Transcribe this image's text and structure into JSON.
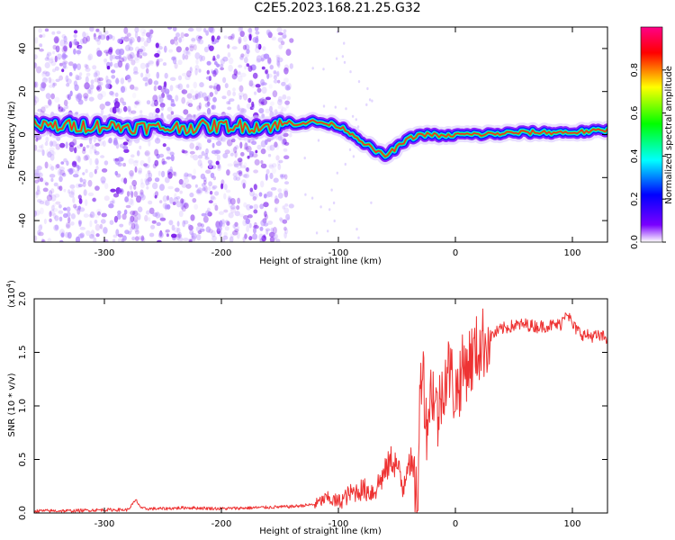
{
  "page": {
    "title": "C2E5.2023.168.21.25.G32"
  },
  "chart_data": [
    {
      "type": "heatmap",
      "xlabel": "Height of straight line (km)",
      "ylabel": "Frequency (Hz)",
      "xlim": [
        -360,
        130
      ],
      "ylim": [
        -50,
        50
      ],
      "xticks": [
        -300,
        -200,
        -100,
        0,
        100
      ],
      "yticks": [
        -40,
        -20,
        0,
        20,
        40
      ],
      "colorbar": {
        "label": "Normalized spectral amplitude",
        "range": [
          0.0,
          1.0
        ],
        "ticks": [
          0.0,
          0.2,
          0.4,
          0.6,
          0.8
        ],
        "tick_labels": [
          "0.0",
          "0.2",
          "0.4",
          "0.6",
          "0.8"
        ],
        "colormap": "rainbow (violet → blue → cyan → green → yellow → red → magenta)"
      },
      "ridge": {
        "x": [
          -360,
          -300,
          -250,
          -200,
          -160,
          -140,
          -120,
          -100,
          -90,
          -80,
          -70,
          -60,
          -50,
          -40,
          -30,
          -20,
          -10,
          0,
          20,
          60,
          100,
          130
        ],
        "y": [
          4,
          4,
          3,
          4,
          4,
          5,
          6,
          4,
          1,
          -3,
          -7,
          -10,
          -6,
          -2,
          0,
          0,
          -1,
          0,
          0,
          1,
          1,
          2
        ]
      },
      "noise_extent_x": [
        -360,
        -140
      ]
    },
    {
      "type": "line",
      "xlabel": "Height of straight line (km)",
      "ylabel": "SNR (10 * v/v)",
      "y_multiplier_label": "(x10",
      "y_multiplier_exp": "4",
      "y_multiplier_close": ")",
      "xlim": [
        -360,
        130
      ],
      "ylim": [
        0,
        2.0
      ],
      "xticks": [
        -300,
        -200,
        -100,
        0,
        100
      ],
      "yticks": [
        0.0,
        0.5,
        1.0,
        1.5,
        2.0
      ],
      "ytick_labels": [
        "0.0",
        "0.5",
        "1.0",
        "1.5",
        "2.0"
      ],
      "color": "#ee3333",
      "series": [
        {
          "x": [
            -360,
            -330,
            -300,
            -280,
            -273,
            -268,
            -250,
            -230,
            -200,
            -170,
            -140,
            -120,
            -110,
            -100,
            -90,
            -80,
            -70,
            -60,
            -55,
            -50,
            -45,
            -40,
            -35,
            -32,
            -30,
            -28,
            -25,
            -20,
            -15,
            -10,
            -5,
            0,
            5,
            10,
            15,
            20,
            30,
            40,
            50,
            60,
            70,
            80,
            90,
            95,
            100,
            105,
            110,
            120,
            130
          ],
          "y": [
            0.02,
            0.02,
            0.03,
            0.03,
            0.12,
            0.04,
            0.04,
            0.05,
            0.04,
            0.05,
            0.06,
            0.08,
            0.14,
            0.1,
            0.18,
            0.22,
            0.2,
            0.38,
            0.5,
            0.45,
            0.22,
            0.55,
            0.3,
            0.1,
            1.2,
            1.5,
            0.8,
            1.2,
            0.9,
            1.25,
            1.35,
            1.1,
            1.3,
            1.4,
            1.45,
            1.55,
            1.65,
            1.72,
            1.75,
            1.76,
            1.74,
            1.75,
            1.76,
            1.9,
            1.75,
            1.7,
            1.66,
            1.65,
            1.64
          ]
        }
      ]
    }
  ]
}
